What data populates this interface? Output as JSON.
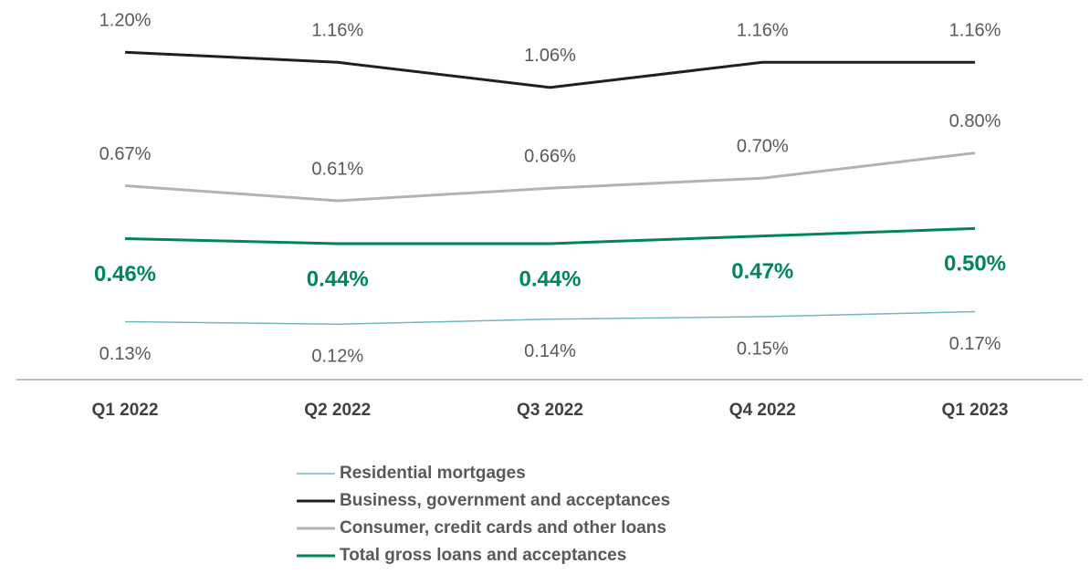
{
  "chart_data": {
    "type": "line",
    "categories": [
      "Q1 2022",
      "Q2 2022",
      "Q3 2022",
      "Q4 2022",
      "Q1 2023"
    ],
    "series": [
      {
        "name": "Residential mortgages",
        "color": "#6fb7c0",
        "values": [
          0.13,
          0.12,
          0.14,
          0.15,
          0.17
        ],
        "value_labels": [
          "0.13%",
          "0.12%",
          "0.14%",
          "0.15%",
          "0.17%"
        ]
      },
      {
        "name": "Business, government and acceptances",
        "color": "#231f20",
        "values": [
          1.2,
          1.16,
          1.06,
          1.16,
          1.16
        ],
        "value_labels": [
          "1.20%",
          "1.16%",
          "1.06%",
          "1.16%",
          "1.16%"
        ]
      },
      {
        "name": "Consumer, credit cards and other loans",
        "color": "#b3b3b3",
        "values": [
          0.67,
          0.61,
          0.66,
          0.7,
          0.8
        ],
        "value_labels": [
          "0.67%",
          "0.61%",
          "0.66%",
          "0.70%",
          "0.80%"
        ]
      },
      {
        "name": "Total gross loans and acceptances",
        "color": "#00855f",
        "values": [
          0.46,
          0.44,
          0.44,
          0.47,
          0.5
        ],
        "value_labels": [
          "0.46%",
          "0.44%",
          "0.44%",
          "0.47%",
          "0.50%"
        ]
      }
    ],
    "ylim": [
      -0.1,
      1.4
    ]
  }
}
